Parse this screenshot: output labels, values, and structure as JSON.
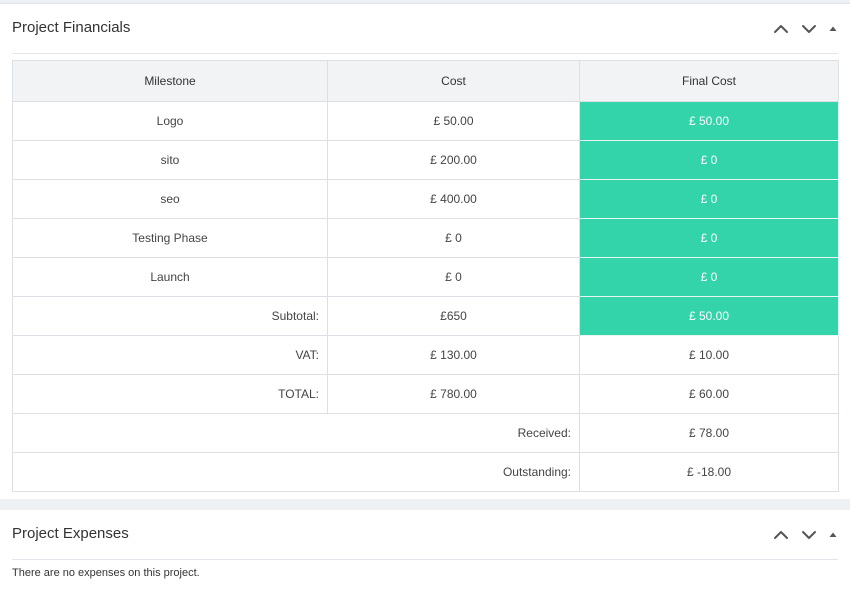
{
  "financials": {
    "title": "Project Financials",
    "controls": [
      "chevron-up-icon",
      "chevron-down-icon",
      "caret-up-icon"
    ],
    "columns": [
      "Milestone",
      "Cost",
      "Final Cost"
    ],
    "rows": [
      {
        "milestone": "Logo",
        "cost": "£ 50.00",
        "final": "£ 50.00"
      },
      {
        "milestone": "sito",
        "cost": "£ 200.00",
        "final": "£ 0"
      },
      {
        "milestone": "seo",
        "cost": "£ 400.00",
        "final": "£ 0"
      },
      {
        "milestone": "Testing Phase",
        "cost": "£ 0",
        "final": "£ 0"
      },
      {
        "milestone": "Launch",
        "cost": "£ 0",
        "final": "£ 0"
      }
    ],
    "subtotal": {
      "label": "Subtotal:",
      "cost": "£650",
      "final": "£ 50.00"
    },
    "vat": {
      "label": "VAT:",
      "cost": "£ 130.00",
      "final": "£ 10.00"
    },
    "total": {
      "label": "TOTAL:",
      "cost": "£ 780.00",
      "final": "£ 60.00"
    },
    "received": {
      "label": "Received:",
      "final": "£ 78.00"
    },
    "outstanding": {
      "label": "Outstanding:",
      "final": "£ -18.00"
    },
    "final_cost_highlight": "#34d4ab"
  },
  "expenses": {
    "title": "Project Expenses",
    "empty_message": "There are no expenses on this project."
  }
}
